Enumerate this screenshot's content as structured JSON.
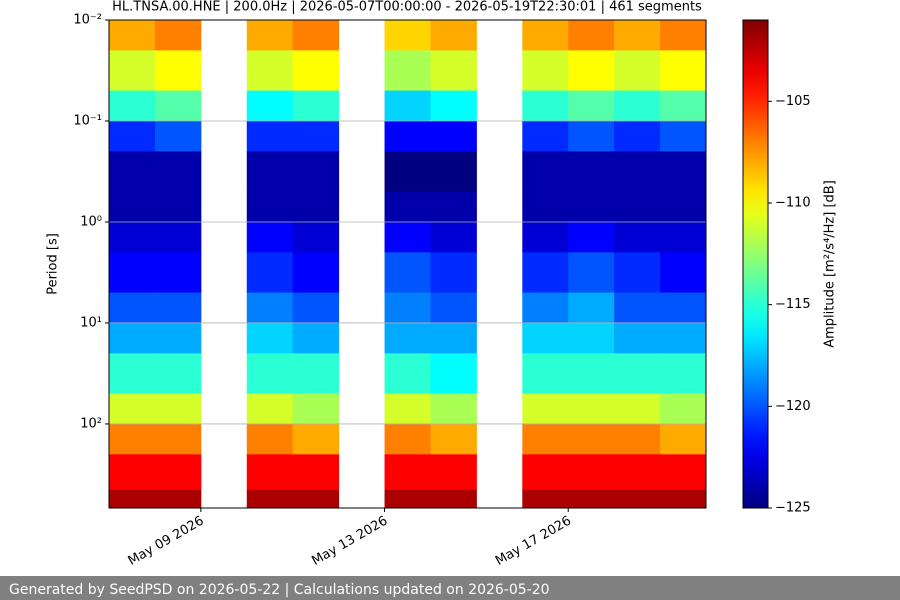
{
  "chart_data": {
    "type": "heatmap",
    "title": "HL.TNSA.00.HNE | 200.0Hz | 2026-05-07T00:00:00 - 2026-05-19T22:30:01 | 461 segments",
    "y_label": "Period [s]",
    "colorbar_label": "Amplitude [m²/s⁴/Hz] [dB]",
    "x_bins": [
      "2026-05-07",
      "2026-05-08",
      "2026-05-09",
      "2026-05-10",
      "2026-05-11",
      "2026-05-12",
      "2026-05-13",
      "2026-05-14",
      "2026-05-15",
      "2026-05-16",
      "2026-05-17",
      "2026-05-18",
      "2026-05-19",
      "2026-05-20"
    ],
    "y_bins": [
      0.01,
      0.02,
      0.05,
      0.1,
      0.2,
      0.5,
      1,
      2,
      5,
      10,
      20,
      50,
      100,
      200,
      450,
      680
    ],
    "z": [
      [
        -108,
        -107,
        null,
        -108,
        -107,
        null,
        -109,
        -108,
        null,
        -108,
        -107,
        -108,
        -107
      ],
      [
        -111,
        -110,
        null,
        -111,
        -110,
        null,
        -112,
        -111,
        null,
        -111,
        -110,
        -111,
        -110
      ],
      [
        -115,
        -114,
        null,
        -116,
        -115,
        null,
        -117,
        -116,
        null,
        -115,
        -114,
        -115,
        -114
      ],
      [
        -121,
        -120,
        null,
        -121,
        -121,
        null,
        -122,
        -122,
        null,
        -121,
        -120,
        -121,
        -120
      ],
      [
        -124,
        -124,
        null,
        -124,
        -124,
        null,
        -125,
        -125,
        null,
        -124,
        -124,
        -124,
        -124
      ],
      [
        -124,
        -124,
        null,
        -124,
        -124,
        null,
        -124,
        -124,
        null,
        -124,
        -124,
        -124,
        -124
      ],
      [
        -123,
        -123,
        null,
        -122,
        -123,
        null,
        -122,
        -123,
        null,
        -123,
        -122,
        -123,
        -123
      ],
      [
        -122,
        -122,
        null,
        -121,
        -122,
        null,
        -120,
        -121,
        null,
        -121,
        -120,
        -121,
        -122
      ],
      [
        -120,
        -120,
        null,
        -119,
        -120,
        null,
        -119,
        -120,
        null,
        -119,
        -118,
        -120,
        -120
      ],
      [
        -118,
        -118,
        null,
        -117,
        -118,
        null,
        -118,
        -118,
        null,
        -117,
        -117,
        -118,
        -118
      ],
      [
        -115,
        -115,
        null,
        -115,
        -115,
        null,
        -115,
        -116,
        null,
        -115,
        -115,
        -115,
        -115
      ],
      [
        -111,
        -111,
        null,
        -111,
        -112,
        null,
        -111,
        -112,
        null,
        -111,
        -111,
        -111,
        -112
      ],
      [
        -107,
        -107,
        null,
        -107,
        -108,
        null,
        -107,
        -108,
        null,
        -107,
        -107,
        -107,
        -108
      ],
      [
        -104,
        -104,
        null,
        -104,
        -104,
        null,
        -104,
        -104,
        null,
        -104,
        -104,
        -104,
        -104
      ],
      [
        -102,
        -102,
        null,
        -102,
        -102,
        null,
        -102,
        -102,
        null,
        -102,
        -102,
        -102,
        -102
      ]
    ],
    "xlim": [
      "2026-05-07",
      "2026-05-20"
    ],
    "xticks": [
      {
        "value": "2026-05-09",
        "label": "May 09 2026"
      },
      {
        "value": "2026-05-13",
        "label": "May 13 2026"
      },
      {
        "value": "2026-05-17",
        "label": "May 17 2026"
      }
    ],
    "ylim": [
      0.01,
      680
    ],
    "y_log": true,
    "y_inverted": true,
    "yticks": [
      {
        "value": 0.01,
        "label": "10⁻²"
      },
      {
        "value": 0.1,
        "label": "10⁻¹"
      },
      {
        "value": 1,
        "label": "10⁰"
      },
      {
        "value": 10,
        "label": "10¹"
      },
      {
        "value": 100,
        "label": "10²"
      }
    ],
    "grid": true,
    "colormap": "jet",
    "clim": [
      -125,
      -101
    ],
    "cticks": [
      {
        "value": -105,
        "label": "−105"
      },
      {
        "value": -110,
        "label": "−110"
      },
      {
        "value": -115,
        "label": "−115"
      },
      {
        "value": -120,
        "label": "−120"
      },
      {
        "value": -125,
        "label": "−125"
      }
    ]
  },
  "footer": "Generated by SeedPSD on 2026-05-22 | Calculations updated on 2026-05-20"
}
